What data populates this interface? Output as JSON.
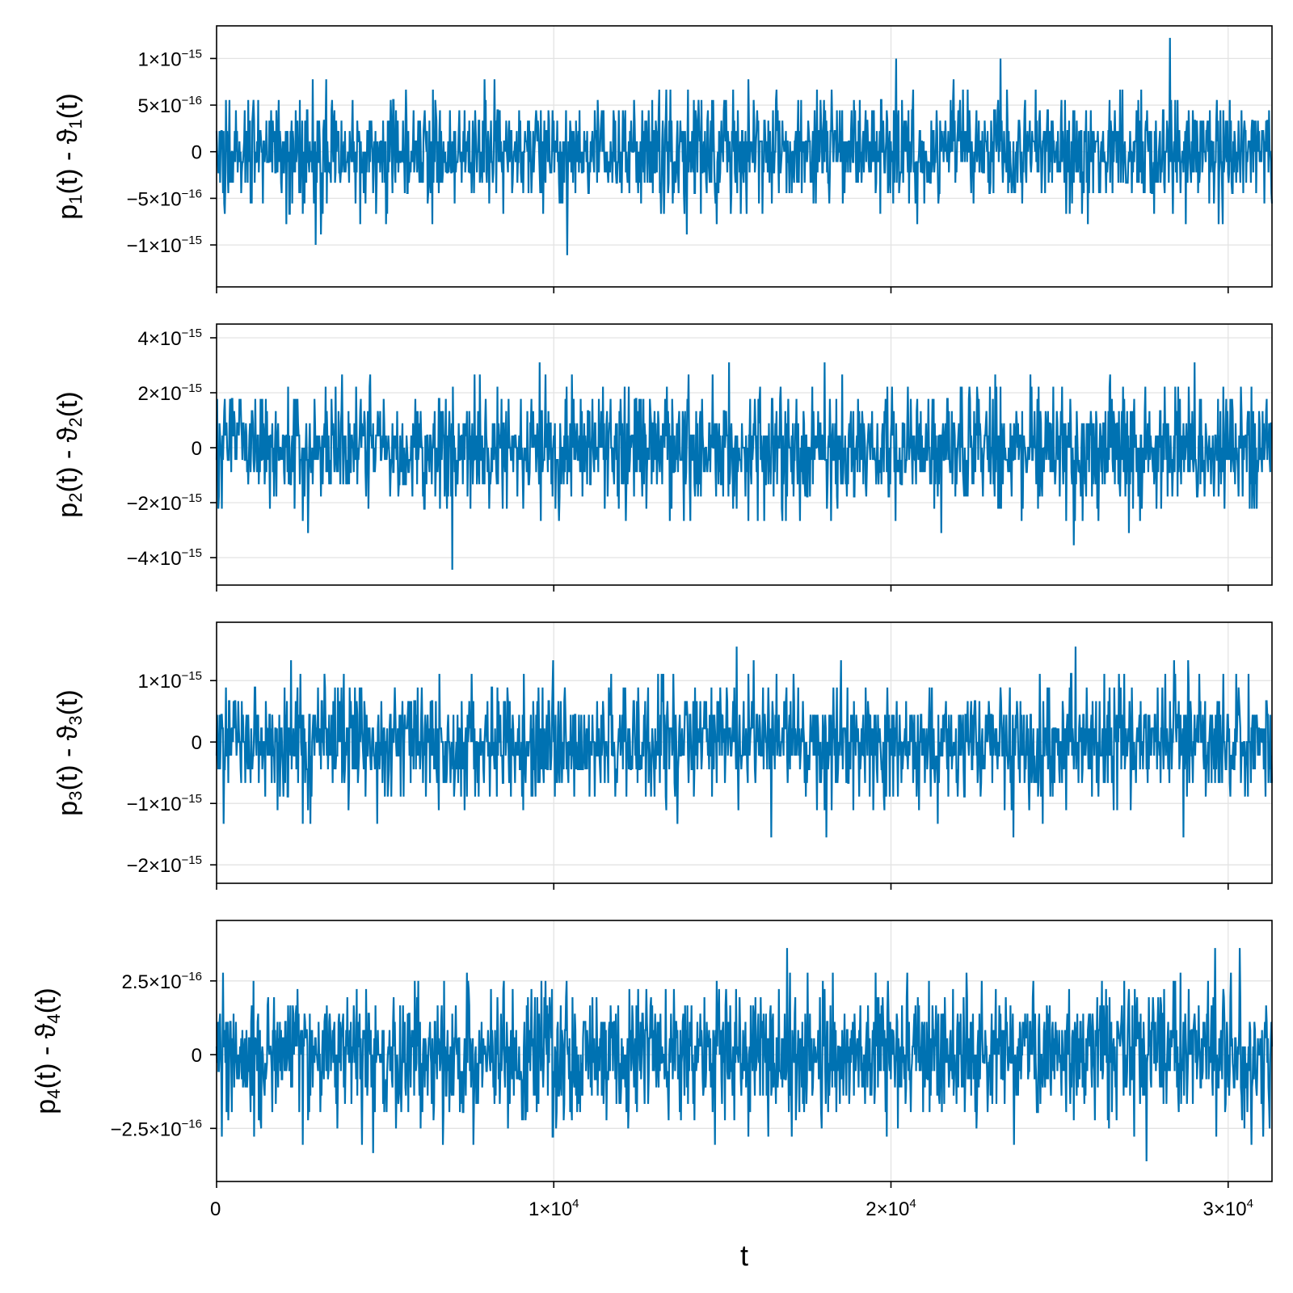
{
  "chart_data": [
    {
      "type": "line",
      "ylabel": {
        "pre": "p",
        "sub": "1",
        "mid": "(t) - ϑ",
        "sub2": "1",
        "post": "(t)"
      },
      "series_color": "#0072b2",
      "xlim": [
        0,
        31300
      ],
      "ylim": [
        -1.45e-15,
        1.35e-15
      ],
      "noise_sigma": 2.9e-16,
      "quantum": 1.11e-16,
      "yticks": [
        {
          "value": 1e-15,
          "mant": "1×10",
          "exp": "−15"
        },
        {
          "value": 5e-16,
          "mant": "5×10",
          "exp": "−16"
        },
        {
          "value": 0,
          "mant": "0",
          "exp": ""
        },
        {
          "value": -5e-16,
          "mant": "−5×10",
          "exp": "−16"
        },
        {
          "value": -1e-15,
          "mant": "−1×10",
          "exp": "−15"
        }
      ]
    },
    {
      "type": "line",
      "ylabel": {
        "pre": "p",
        "sub": "2",
        "mid": "(t) - ϑ",
        "sub2": "2",
        "post": "(t)"
      },
      "series_color": "#0072b2",
      "xlim": [
        0,
        31300
      ],
      "ylim": [
        -5e-15,
        4.5e-15
      ],
      "noise_sigma": 1.05e-15,
      "quantum": 4.44e-16,
      "yticks": [
        {
          "value": 4e-15,
          "mant": "4×10",
          "exp": "−15"
        },
        {
          "value": 2e-15,
          "mant": "2×10",
          "exp": "−15"
        },
        {
          "value": 0,
          "mant": "0",
          "exp": ""
        },
        {
          "value": -2e-15,
          "mant": "−2×10",
          "exp": "−15"
        },
        {
          "value": -4e-15,
          "mant": "−4×10",
          "exp": "−15"
        }
      ]
    },
    {
      "type": "line",
      "ylabel": {
        "pre": "p",
        "sub": "3",
        "mid": "(t) - ϑ",
        "sub2": "3",
        "post": "(t)"
      },
      "series_color": "#0072b2",
      "xlim": [
        0,
        31300
      ],
      "ylim": [
        -2.3e-15,
        1.95e-15
      ],
      "noise_sigma": 4.7e-16,
      "quantum": 2.22e-16,
      "yticks": [
        {
          "value": 1e-15,
          "mant": "1×10",
          "exp": "−15"
        },
        {
          "value": 0,
          "mant": "0",
          "exp": ""
        },
        {
          "value": -1e-15,
          "mant": "−1×10",
          "exp": "−15"
        },
        {
          "value": -2e-15,
          "mant": "−2×10",
          "exp": "−15"
        }
      ]
    },
    {
      "type": "line",
      "ylabel": {
        "pre": "p",
        "sub": "4",
        "mid": "(t) - ϑ",
        "sub2": "4",
        "post": "(t)"
      },
      "series_color": "#0072b2",
      "xlim": [
        0,
        31300
      ],
      "ylim": [
        -4.3e-16,
        4.55e-16
      ],
      "noise_sigma": 1.15e-16,
      "quantum": 2.78e-17,
      "yticks": [
        {
          "value": 2.5e-16,
          "mant": "2.5×10",
          "exp": "−16"
        },
        {
          "value": 0,
          "mant": "0",
          "exp": ""
        },
        {
          "value": -2.5e-16,
          "mant": "−2.5×10",
          "exp": "−16"
        }
      ]
    }
  ],
  "xaxis": {
    "label": "t",
    "ticks": [
      {
        "value": 0,
        "mant": "0",
        "exp": ""
      },
      {
        "value": 10000,
        "mant": "1×10",
        "exp": "4"
      },
      {
        "value": 20000,
        "mant": "2×10",
        "exp": "4"
      },
      {
        "value": 30000,
        "mant": "3×10",
        "exp": "4"
      }
    ]
  },
  "grid": true
}
